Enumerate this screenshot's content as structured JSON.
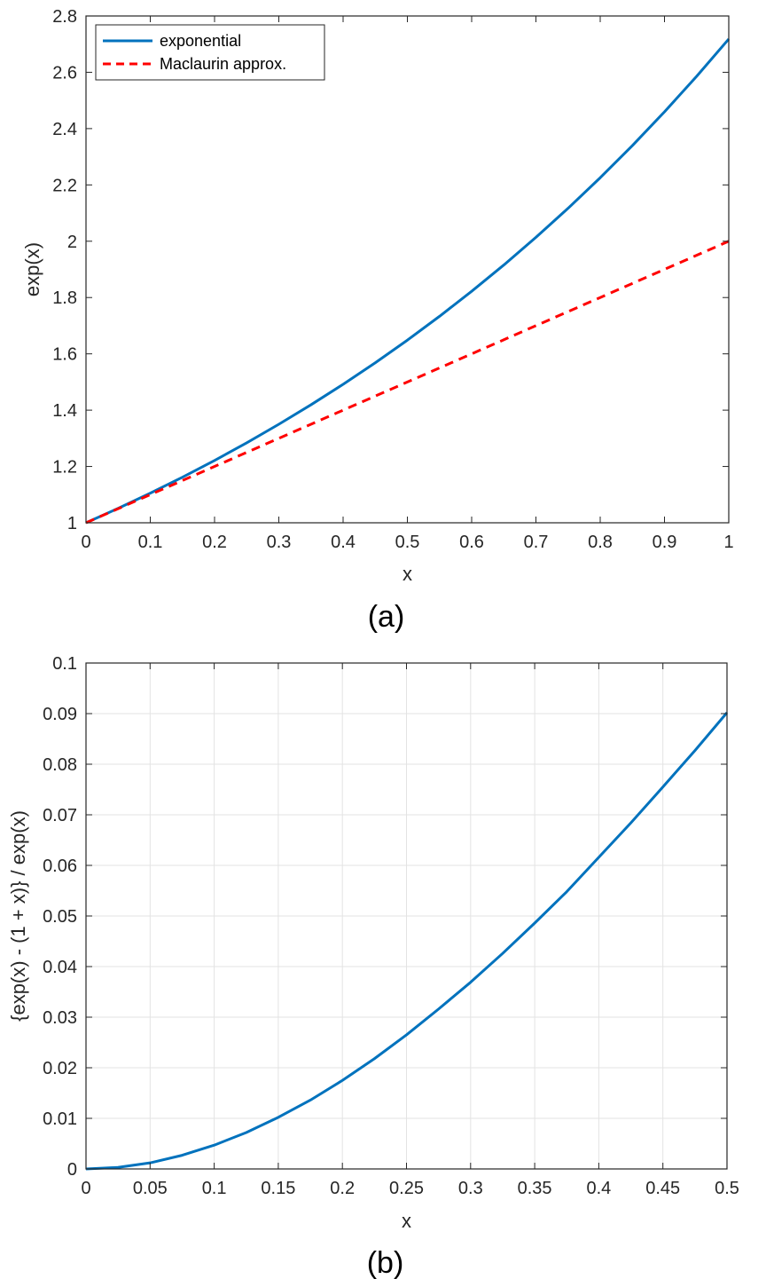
{
  "chart_data": [
    {
      "type": "line",
      "caption": "(a)",
      "xlabel": "x",
      "ylabel": "exp(x)",
      "xlim": [
        0,
        1
      ],
      "ylim": [
        1,
        2.8
      ],
      "xticks": [
        "0",
        "0.1",
        "0.2",
        "0.3",
        "0.4",
        "0.5",
        "0.6",
        "0.7",
        "0.8",
        "0.9",
        "1"
      ],
      "yticks": [
        "1",
        "1.2",
        "1.4",
        "1.6",
        "1.8",
        "2",
        "2.2",
        "2.4",
        "2.6",
        "2.8"
      ],
      "grid": false,
      "legend_position": "top-left",
      "series": [
        {
          "name": "exponential",
          "color": "#0072BD",
          "style": "solid",
          "x": [
            0,
            0.05,
            0.1,
            0.15,
            0.2,
            0.25,
            0.3,
            0.35,
            0.4,
            0.45,
            0.5,
            0.55,
            0.6,
            0.65,
            0.7,
            0.75,
            0.8,
            0.85,
            0.9,
            0.95,
            1
          ],
          "y": [
            1,
            1.0513,
            1.1052,
            1.1618,
            1.2214,
            1.284,
            1.3499,
            1.4191,
            1.4918,
            1.5683,
            1.6487,
            1.7333,
            1.8221,
            1.9155,
            2.0138,
            2.117,
            2.2255,
            2.3396,
            2.4596,
            2.5857,
            2.7183
          ]
        },
        {
          "name": "Maclaurin approx.",
          "color": "#FF0000",
          "style": "dashed",
          "x": [
            0,
            1
          ],
          "y": [
            1,
            2
          ]
        }
      ]
    },
    {
      "type": "line",
      "caption": "(b)",
      "xlabel": "x",
      "ylabel": "{exp(x) - (1 + x)} / exp(x)",
      "xlim": [
        0,
        0.5
      ],
      "ylim": [
        0,
        0.1
      ],
      "xticks": [
        "0",
        "0.05",
        "0.1",
        "0.15",
        "0.2",
        "0.25",
        "0.3",
        "0.35",
        "0.4",
        "0.45",
        "0.5"
      ],
      "yticks": [
        "0",
        "0.01",
        "0.02",
        "0.03",
        "0.04",
        "0.05",
        "0.06",
        "0.07",
        "0.08",
        "0.09",
        "0.1"
      ],
      "grid": true,
      "series": [
        {
          "color": "#0072BD",
          "style": "solid",
          "x": [
            0,
            0.025,
            0.05,
            0.075,
            0.1,
            0.125,
            0.15,
            0.175,
            0.2,
            0.225,
            0.25,
            0.275,
            0.3,
            0.325,
            0.35,
            0.375,
            0.4,
            0.425,
            0.45,
            0.475,
            0.5
          ],
          "y": [
            0,
            0.0003,
            0.0012,
            0.0027,
            0.0047,
            0.0072,
            0.0102,
            0.0136,
            0.0175,
            0.0218,
            0.0265,
            0.0316,
            0.0369,
            0.0426,
            0.0486,
            0.0548,
            0.0616,
            0.0684,
            0.0755,
            0.0827,
            0.0902
          ]
        }
      ]
    }
  ]
}
